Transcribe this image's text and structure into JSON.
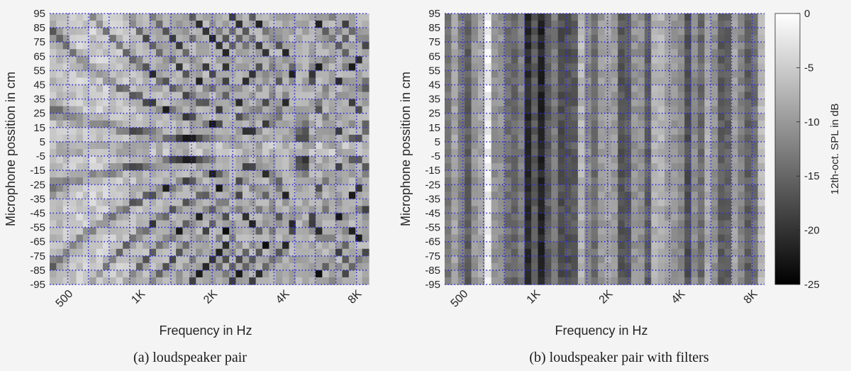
{
  "chart_data": [
    {
      "type": "heatmap",
      "caption": "(a) loudspeaker pair",
      "xlabel": "Frequency in Hz",
      "ylabel": "Microphone possition in cm",
      "x_scale": "log",
      "xlim": [
        420,
        9000
      ],
      "x_ticks": [
        500,
        1000,
        2000,
        4000,
        8000
      ],
      "x_tick_labels": [
        "500",
        "1K",
        "2K",
        "4K",
        "8K"
      ],
      "y_ticks": [
        95,
        85,
        75,
        65,
        55,
        45,
        35,
        25,
        15,
        5,
        -5,
        -15,
        -25,
        -35,
        -45,
        -55,
        -65,
        -75,
        -85,
        -95
      ],
      "y_tick_labels": [
        "95",
        "85",
        "75",
        "65",
        "55",
        "45",
        "35",
        "25",
        "15",
        "5",
        "-5",
        "-15",
        "-25",
        "-35",
        "-45",
        "-55",
        "-65",
        "-75",
        "-85",
        "-95"
      ],
      "ylim": [
        -95,
        95
      ],
      "grid": true,
      "description": "Interference pattern: dark diagonal notches fanning from the center position toward the edges; brightest region around 500-700 Hz near center; minima near -25 dB around 1 kHz at +/-35 cm."
    },
    {
      "type": "heatmap",
      "caption": "(b) loudspeaker pair with filters",
      "xlabel": "Frequency in Hz",
      "ylabel": "Microphone possition in cm",
      "x_scale": "log",
      "xlim": [
        420,
        9000
      ],
      "x_ticks": [
        500,
        1000,
        2000,
        4000,
        8000
      ],
      "x_tick_labels": [
        "500",
        "1K",
        "2K",
        "4K",
        "8K"
      ],
      "y_ticks": [
        95,
        85,
        75,
        65,
        55,
        45,
        35,
        25,
        15,
        5,
        -5,
        -15,
        -25,
        -35,
        -45,
        -55,
        -65,
        -75,
        -85,
        -95
      ],
      "y_tick_labels": [
        "95",
        "85",
        "75",
        "65",
        "55",
        "45",
        "35",
        "25",
        "15",
        "5",
        "-5",
        "-15",
        "-25",
        "-35",
        "-45",
        "-55",
        "-65",
        "-75",
        "-85",
        "-95"
      ],
      "ylim": [
        -95,
        95
      ],
      "grid": true,
      "description": "With filters the level is nearly independent of position: vertical bands only, darker around 900-1200 Hz, brighter around 600-700 Hz and 4-5 kHz."
    }
  ],
  "colorbar": {
    "label": "12th-oct. SPL in dB",
    "ticks": [
      0,
      -5,
      -10,
      -15,
      -20,
      -25
    ],
    "tick_labels": [
      "0",
      "-5",
      "-10",
      "-15",
      "-20",
      "-25"
    ],
    "range": [
      -25,
      0
    ],
    "colormap": "gray"
  },
  "colors": {
    "grid": "#2b2bd6",
    "background": "#f4f4f4",
    "text": "#262626"
  }
}
